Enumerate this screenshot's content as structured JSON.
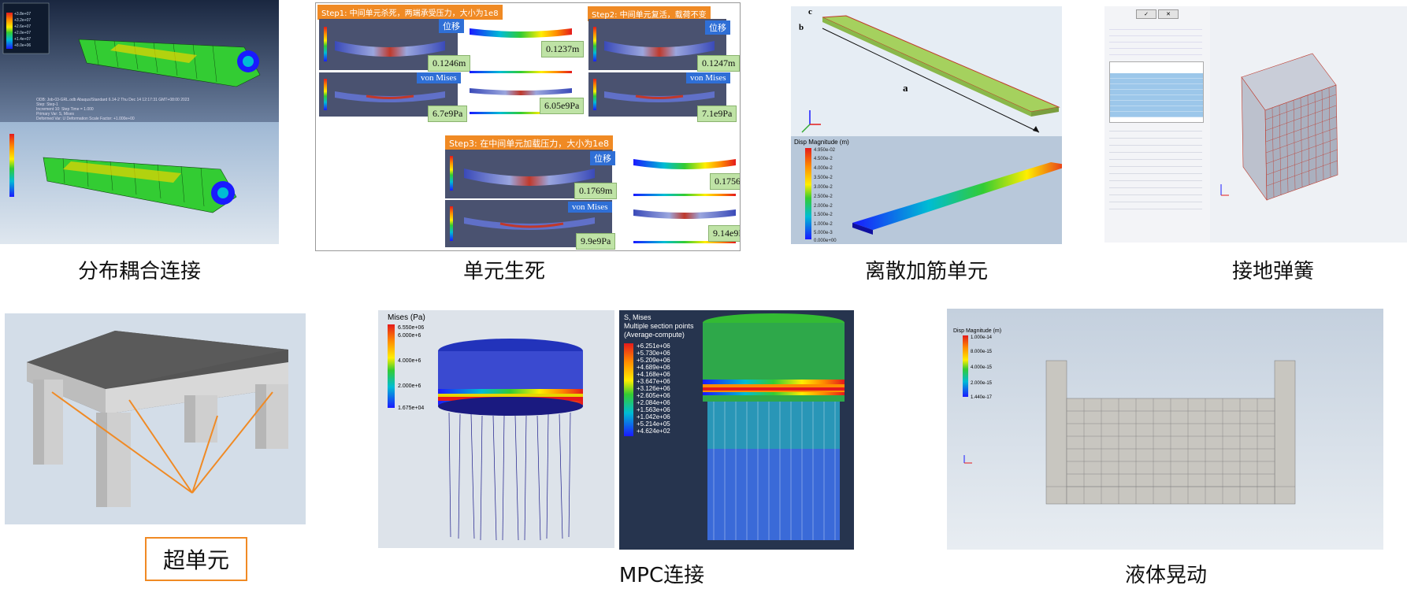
{
  "captions": {
    "p1": "分布耦合连接",
    "p2": "单元生死",
    "p3": "离散加筋单元",
    "p4": "接地弹簧",
    "p5": "超单元",
    "p6": "MPC连接",
    "p7": "液体晃动"
  },
  "p1": {
    "legend_title": "S, Mises\n(Average-compute)",
    "info_lines": [
      "ODB: Job-03-GRL.odb   Abaqus/Standard 6.14-2   Thu Dec 14 12:17:31 GMT+08:00 2023",
      "Step: Step-1",
      "Increment 10: Step Time = 1.000",
      "Primary Var: S, Mises",
      "Deformed Var: U   Deformation Scale Factor: +1.000e+00"
    ]
  },
  "p2": {
    "step1": "Step1: 中间单元杀死，两端承受压力，大小为1e8",
    "step2": "Step2: 中间单元复活，载荷不变",
    "step3": "Step3: 在中间单元加载压力，大小为1e8",
    "tag_disp": "位移",
    "tag_mises": "von Mises",
    "v1a": "0.1246m",
    "v1b": "0.1237m",
    "v1c": "6.7e9Pa",
    "v1d": "6.05e9Pa",
    "v2a": "0.1247m",
    "v2b": "7.1e9Pa",
    "v3a": "0.1769m",
    "v3b": "0.1756",
    "v3c": "9.9e9Pa",
    "v3d": "9.14e9I"
  },
  "p3": {
    "dim_a": "a",
    "dim_b": "b",
    "dim_c": "c",
    "legend_title": "Disp Magnitude (m)",
    "legend_values": [
      "4.950e-02",
      "4.500e-2",
      "4.000e-2",
      "3.500e-2",
      "3.000e-2",
      "2.500e-2",
      "2.000e-2",
      "1.500e-2",
      "1.000e-2",
      "5.000e-3",
      "0.000e+00"
    ]
  },
  "p4": {
    "ok": "✓",
    "cancel": "✕"
  },
  "p6": {
    "left_legend_title": "Mises (Pa)",
    "left_legend_values": [
      "6.550e+06",
      "6.000e+6",
      "4.000e+6",
      "2.000e+6",
      "1.675e+04"
    ],
    "right_legend_title": "S, Mises\nMultiple section points\n(Average-compute)",
    "right_legend_values": [
      "+6.251e+06",
      "+5.730e+06",
      "+5.209e+06",
      "+4.689e+06",
      "+4.168e+06",
      "+3.647e+06",
      "+3.126e+06",
      "+2.605e+06",
      "+2.084e+06",
      "+1.563e+06",
      "+1.042e+06",
      "+5.214e+05",
      "+4.624e+02"
    ]
  },
  "p7": {
    "legend_title": "Disp Magnitude (m)",
    "legend_values": [
      "1.000e-14",
      "8.000e-15",
      "4.000e-15",
      "2.000e-15",
      "1.440e-17"
    ]
  },
  "colors": {
    "orange": "#f08a24",
    "blue_tag": "#2f6fd6",
    "green_val": "#bfe3a6"
  }
}
